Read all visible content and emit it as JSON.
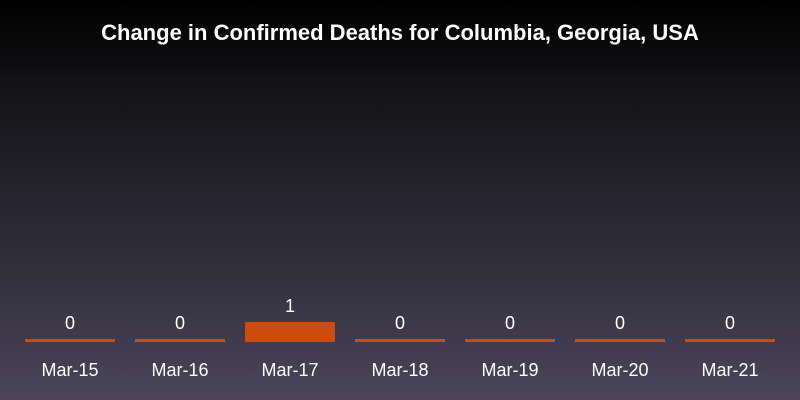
{
  "chart_data": {
    "type": "bar",
    "title": "Change in Confirmed Deaths for Columbia, Georgia, USA",
    "categories": [
      "Mar-15",
      "Mar-16",
      "Mar-17",
      "Mar-18",
      "Mar-19",
      "Mar-20",
      "Mar-21"
    ],
    "values": [
      0,
      0,
      1,
      0,
      0,
      0,
      0
    ],
    "xlabel": "",
    "ylabel": "",
    "ylim": [
      0,
      10
    ],
    "grid": false,
    "legend": "none",
    "bar_color": "#cc4c0e",
    "text_color": "#ffffff"
  }
}
